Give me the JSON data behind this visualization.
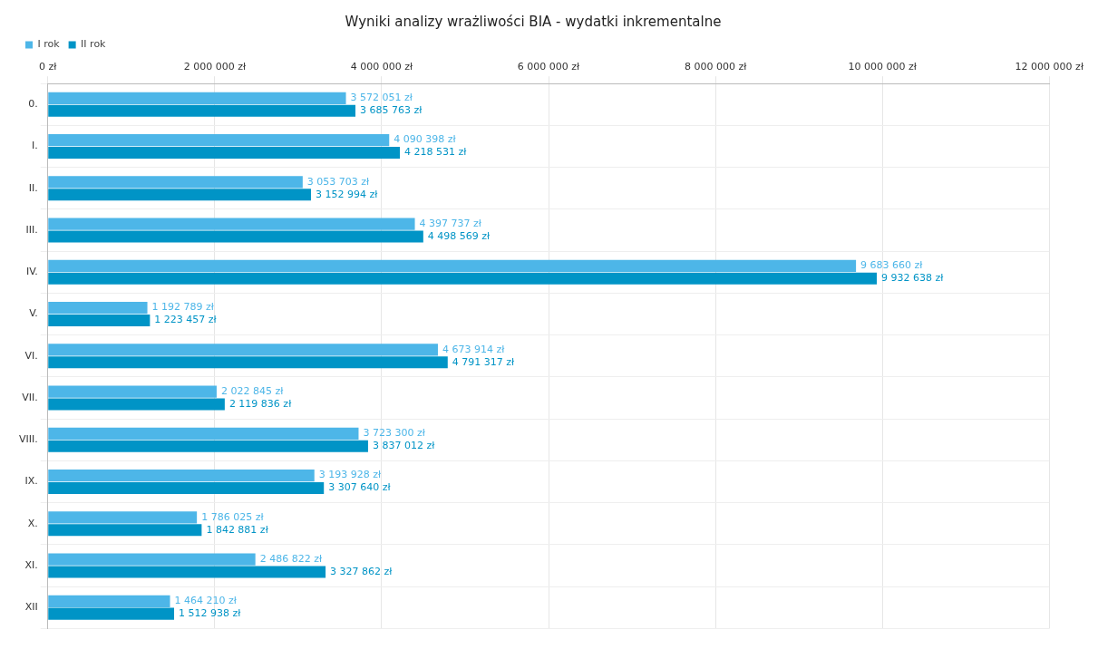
{
  "chart_data": {
    "type": "bar",
    "orientation": "horizontal",
    "title": "Wyniki analizy wrażliwości BIA - wydatki inkrementalne",
    "categories": [
      "0.",
      "I.",
      "II.",
      "III.",
      "IV.",
      "V.",
      "VI.",
      "VII.",
      "VIII.",
      "IX.",
      "X.",
      "XI.",
      "XII"
    ],
    "series": [
      {
        "name": "I rok",
        "color": "#4db6e8",
        "values": [
          3572051,
          4090398,
          3053703,
          4397737,
          9683660,
          1192789,
          4673914,
          2022845,
          3723300,
          3193928,
          1786025,
          2486822,
          1464210
        ],
        "value_labels": [
          "3 572 051 zł",
          "4 090 398 zł",
          "3 053 703 zł",
          "4 397 737 zł",
          "9 683 660 zł",
          "1 192 789 zł",
          "4 673 914 zł",
          "2 022 845 zł",
          "3 723 300 zł",
          "3 193 928 zł",
          "1 786 025 zł",
          "2 486 822 zł",
          "1 464 210 zł"
        ]
      },
      {
        "name": "II rok",
        "color": "#0094c6",
        "values": [
          3685763,
          4218531,
          3152994,
          4498569,
          9932638,
          1223457,
          4791317,
          2119836,
          3837012,
          3307640,
          1842881,
          3327862,
          1512938
        ],
        "value_labels": [
          "3 685 763 zł",
          "4 218 531 zł",
          "3 152 994 zł",
          "4 498 569 zł",
          "9 932 638 zł",
          "1 223 457 zł",
          "4 791 317 zł",
          "2 119 836 zł",
          "3 837 012 zł",
          "3 307 640 zł",
          "1 842 881 zł",
          "3 327 862 zł",
          "1 512 938 zł"
        ]
      }
    ],
    "xlim": [
      0,
      12000000
    ],
    "xticks": [
      {
        "value": 0,
        "label": "0 zł"
      },
      {
        "value": 2000000,
        "label": "2 000 000 zł"
      },
      {
        "value": 4000000,
        "label": "4 000 000 zł"
      },
      {
        "value": 6000000,
        "label": "6 000 000 zł"
      },
      {
        "value": 8000000,
        "label": "8 000 000 zł"
      },
      {
        "value": 10000000,
        "label": "10 000 000 zł"
      },
      {
        "value": 12000000,
        "label": "12 000 000 zł"
      }
    ],
    "grid": true,
    "legend": "top left"
  }
}
